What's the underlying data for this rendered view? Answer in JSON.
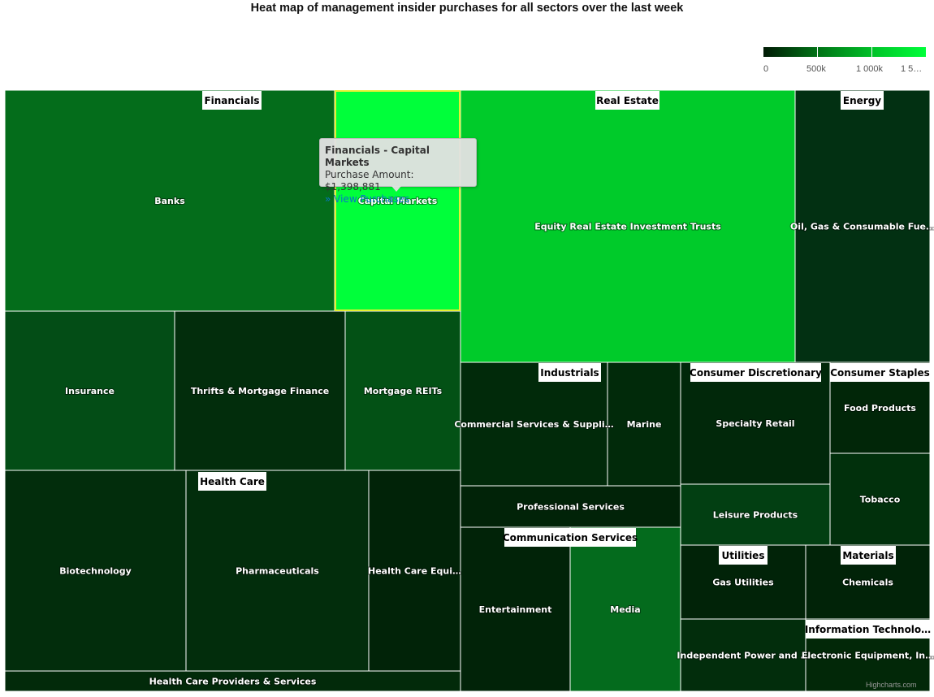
{
  "chart_data": {
    "type": "treemap",
    "title": "Heat map of management insider purchases for all sectors over the last week",
    "value_label": "Purchase Amount",
    "color_axis": {
      "min": 0,
      "max": 1500000,
      "tick_labels": [
        "0",
        "500k",
        "1 000k",
        "1 5…"
      ]
    },
    "colors": {
      "low": "#001a05",
      "mid": "#006a14",
      "high": "#00ff3a",
      "hover_border": "#e6f032"
    },
    "groups": [
      {
        "name": "Financials",
        "label": "Financials",
        "leaves": [
          {
            "name": "Banks",
            "label": "Banks",
            "color": "#046d1b"
          },
          {
            "name": "Capital Markets",
            "label": "Capital Markets",
            "value": 1398881,
            "color": "#00ff3a"
          },
          {
            "name": "Insurance",
            "label": "Insurance",
            "color": "#034d16"
          },
          {
            "name": "Thrifts & Mortgage Finance",
            "label": "Thrifts & Mortgage Finance",
            "color": "#022d0c"
          },
          {
            "name": "Mortgage REITs",
            "label": "Mortgage REITs",
            "color": "#035115"
          }
        ]
      },
      {
        "name": "Real Estate",
        "label": "Real Estate",
        "leaves": [
          {
            "name": "Equity Real Estate Investment Trusts",
            "label": "Equity Real Estate Investment Trusts",
            "color": "#00cb2a"
          }
        ]
      },
      {
        "name": "Energy",
        "label": "Energy",
        "leaves": [
          {
            "name": "Oil, Gas & Consumable Fuels",
            "label": "Oil, Gas & Consumable Fue…",
            "color": "#023012"
          }
        ]
      },
      {
        "name": "Industrials",
        "label": "Industrials",
        "leaves": [
          {
            "name": "Commercial Services & Supplies",
            "label": "Commercial Services & Suppli…",
            "color": "#012a0a"
          },
          {
            "name": "Marine",
            "label": "Marine",
            "color": "#012a0a"
          },
          {
            "name": "Professional Services",
            "label": "Professional Services",
            "color": "#012308"
          }
        ]
      },
      {
        "name": "Consumer Discretionary",
        "label": "Consumer Discretionary",
        "leaves": [
          {
            "name": "Specialty Retail",
            "label": "Specialty Retail",
            "color": "#01280a"
          },
          {
            "name": "Leisure Products",
            "label": "Leisure Products",
            "color": "#023f12"
          }
        ]
      },
      {
        "name": "Consumer Staples",
        "label": "Consumer Staples",
        "leaves": [
          {
            "name": "Food Products",
            "label": "Food Products",
            "color": "#012608"
          },
          {
            "name": "Tobacco",
            "label": "Tobacco",
            "color": "#01300c"
          }
        ]
      },
      {
        "name": "Health Care",
        "label": "Health Care",
        "leaves": [
          {
            "name": "Biotechnology",
            "label": "Biotechnology",
            "color": "#022d0c"
          },
          {
            "name": "Pharmaceuticals",
            "label": "Pharmaceuticals",
            "color": "#022d0c"
          },
          {
            "name": "Health Care Equipment & Supplies",
            "label": "Health Care Equi…",
            "color": "#012308"
          },
          {
            "name": "Health Care Providers & Services",
            "label": "Health Care Providers & Services",
            "color": "#022a0a"
          }
        ]
      },
      {
        "name": "Communication Services",
        "label": "Communication Services",
        "leaves": [
          {
            "name": "Entertainment",
            "label": "Entertainment",
            "color": "#012308"
          },
          {
            "name": "Media",
            "label": "Media",
            "color": "#046b1d"
          }
        ]
      },
      {
        "name": "Utilities",
        "label": "Utilities",
        "leaves": [
          {
            "name": "Gas Utilities",
            "label": "Gas Utilities",
            "color": "#012308"
          },
          {
            "name": "Independent Power and Renewable Electricity Producers",
            "label": "Independent Power and …",
            "color": "#022d0c"
          }
        ]
      },
      {
        "name": "Materials",
        "label": "Materials",
        "leaves": [
          {
            "name": "Chemicals",
            "label": "Chemicals",
            "color": "#012308"
          }
        ]
      },
      {
        "name": "Information Technology",
        "label": "Information Technolo…",
        "leaves": [
          {
            "name": "Electronic Equipment, Instruments & Components",
            "label": "Electronic Equipment, In…",
            "color": "#022808"
          }
        ]
      }
    ]
  },
  "tooltip": {
    "title": "Financials - Capital Markets",
    "amount_text": "Purchase Amount: $1,398,881",
    "link_text": "» View Purchases"
  },
  "credits": "Highcharts.com"
}
